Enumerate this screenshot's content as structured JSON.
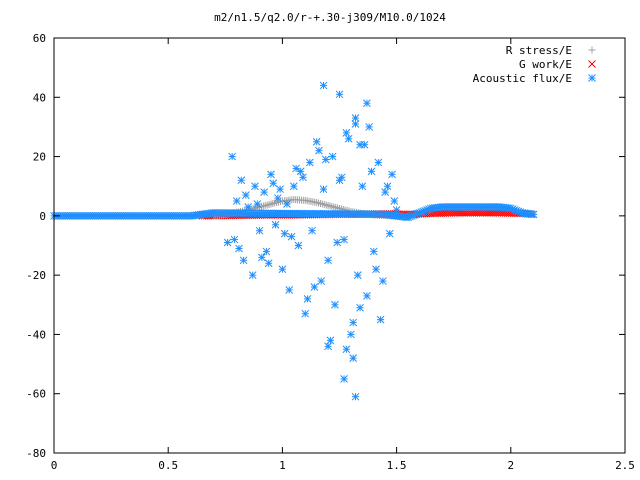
{
  "chart_data": {
    "type": "scatter",
    "title": "m2/n1.5/q2.0/r-+.30-j309/M10.0/1024",
    "xlabel": "",
    "ylabel": "",
    "xlim": [
      0,
      2.5
    ],
    "ylim": [
      -80,
      60
    ],
    "x_ticks": [
      "0",
      "0.5",
      "1",
      "1.5",
      "2",
      "2.5"
    ],
    "y_ticks": [
      "60",
      "40",
      "20",
      "0",
      "-20",
      "-40",
      "-60",
      "-80"
    ],
    "grid": false,
    "legend_position": "top-right",
    "series": [
      {
        "name": "R stress/E",
        "marker": "plus",
        "color": "#a0a0a0",
        "x": [
          0.7,
          0.75,
          0.8,
          0.85,
          0.9,
          0.95,
          1.0,
          1.05,
          1.1,
          1.15,
          1.2,
          1.25,
          1.3,
          1.35,
          1.4,
          1.45,
          1.5
        ],
        "y": [
          0.0,
          0.5,
          1.2,
          2.0,
          3.0,
          4.0,
          5.0,
          5.5,
          5.2,
          4.5,
          3.5,
          2.5,
          1.5,
          0.8,
          0.3,
          0.1,
          0.0
        ]
      },
      {
        "name": "G work/E",
        "marker": "cross",
        "color": "#ff0000",
        "x": [
          0.65,
          0.75,
          0.85,
          0.95,
          1.05,
          1.15,
          1.25,
          1.35,
          1.45,
          1.55,
          1.65,
          1.75,
          1.85,
          1.95,
          2.05,
          2.1
        ],
        "y": [
          0.0,
          0.1,
          0.2,
          0.3,
          0.3,
          0.4,
          0.5,
          0.6,
          0.7,
          0.5,
          0.8,
          1.0,
          1.0,
          1.0,
          0.8,
          0.5
        ]
      },
      {
        "name": "Acoustic flux/E",
        "marker": "star",
        "color": "#1f8fff",
        "x": [
          0.78,
          0.79,
          0.8,
          0.82,
          0.83,
          0.85,
          0.87,
          0.88,
          0.9,
          0.92,
          0.93,
          0.95,
          0.97,
          0.98,
          1.0,
          1.02,
          1.03,
          1.05,
          1.07,
          1.08,
          1.1,
          1.12,
          1.13,
          1.15,
          1.17,
          1.18,
          1.2,
          1.22,
          1.23,
          1.25,
          1.27,
          1.28,
          1.3,
          1.32,
          1.33,
          1.35,
          1.37,
          1.38,
          1.4,
          1.42,
          1.43,
          1.45,
          1.47,
          1.48,
          1.5,
          0.76,
          0.84,
          0.91,
          0.96,
          1.01,
          1.06,
          1.11,
          1.16,
          1.21,
          1.26,
          1.31,
          1.36,
          1.41,
          1.46,
          0.81,
          0.89,
          0.94,
          0.99,
          1.04,
          1.09,
          1.14,
          1.19,
          1.24,
          1.29,
          1.34,
          1.39,
          1.44,
          1.49,
          1.18,
          1.25,
          1.32,
          1.34,
          1.32,
          1.31,
          1.37,
          1.28,
          1.2,
          1.27
        ],
        "y": [
          20.0,
          -8.0,
          5.0,
          12.0,
          -15.0,
          3.0,
          -20.0,
          10.0,
          -5.0,
          8.0,
          -12.0,
          14.0,
          -3.0,
          6.0,
          -18.0,
          4.0,
          -25.0,
          10.0,
          -10.0,
          15.0,
          -33.0,
          18.0,
          -5.0,
          25.0,
          -22.0,
          9.0,
          -15.0,
          20.0,
          -30.0,
          12.0,
          -8.0,
          28.0,
          -40.0,
          33.0,
          -20.0,
          10.0,
          -27.0,
          30.0,
          -12.0,
          18.0,
          -35.0,
          8.0,
          -6.0,
          14.0,
          2.0,
          -9.0,
          7.0,
          -14.0,
          11.0,
          -6.0,
          16.0,
          -28.0,
          22.0,
          -42.0,
          13.0,
          -36.0,
          24.0,
          -18.0,
          10.0,
          -11.0,
          4.0,
          -16.0,
          9.0,
          -7.0,
          13.0,
          -24.0,
          19.0,
          -9.0,
          26.0,
          -31.0,
          15.0,
          -22.0,
          5.0,
          44.0,
          41.0,
          31.0,
          24.0,
          -61.0,
          -48.0,
          38.0,
          -45.0,
          -44.0,
          -55.0
        ]
      }
    ],
    "acoustic_band": {
      "x": [
        0.0,
        0.1,
        0.2,
        0.3,
        0.4,
        0.5,
        0.6,
        0.65,
        0.7,
        1.45,
        1.5,
        1.55,
        1.6,
        1.65,
        1.7,
        1.75,
        1.8,
        1.85,
        1.9,
        1.95,
        2.0,
        2.05,
        2.1
      ],
      "y": [
        0.0,
        0.0,
        0.0,
        0.0,
        0.0,
        0.0,
        0.0,
        0.5,
        1.0,
        0.5,
        0.0,
        -0.5,
        1.0,
        2.5,
        3.0,
        3.0,
        3.0,
        3.0,
        3.0,
        3.0,
        2.5,
        1.0,
        0.5
      ]
    },
    "colors": {
      "r_stress": "#a0a0a0",
      "g_work": "#ff0000",
      "acoustic": "#1f8fff"
    }
  }
}
